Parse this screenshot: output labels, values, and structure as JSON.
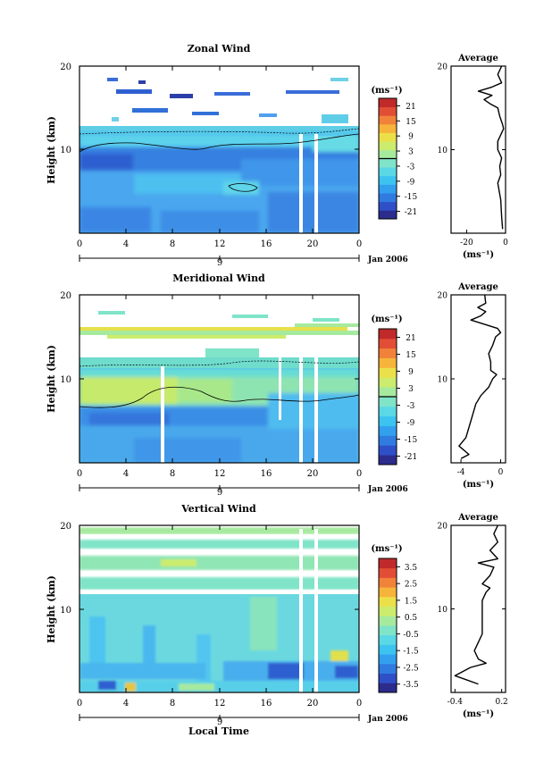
{
  "colormap": [
    "#2c2c8c",
    "#2f4fc8",
    "#2f7be0",
    "#33a0ef",
    "#3cc3f0",
    "#5ad8e6",
    "#7fe4c8",
    "#a6ea9e",
    "#cbec6c",
    "#ece04a",
    "#f6b53a",
    "#f1823a",
    "#e24e35",
    "#c02a2a"
  ],
  "chart_data": [
    {
      "type": "heatmap",
      "title": "Zonal Wind",
      "ylabel": "Height (km)",
      "xlabel": "",
      "x_range": [
        0,
        24
      ],
      "y_range": [
        0,
        20
      ],
      "x_ticks": [
        "0",
        "4",
        "8",
        "12",
        "16",
        "20",
        "0"
      ],
      "y_ticks": [
        "10",
        "20"
      ],
      "date_label": "Jan 2006",
      "date_tick": "9",
      "colorbar": {
        "unit": "(ms⁻¹)",
        "ticks": [
          "21",
          "15",
          "9",
          "3",
          "-3",
          "-9",
          "-15",
          "-21"
        ],
        "range": [
          -24,
          24
        ]
      },
      "profile": {
        "title": "Average",
        "xlabel": "(ms⁻¹)",
        "x_ticks": [
          "-20",
          "0"
        ],
        "x_range": [
          -28,
          0
        ],
        "y_ticks": [
          "10",
          "20"
        ],
        "height": [
          0.5,
          2,
          4,
          6,
          7,
          8,
          9,
          10,
          11,
          12,
          12.5,
          13,
          14,
          15,
          15.5,
          16,
          16.5,
          17,
          17.5,
          18,
          19,
          20
        ],
        "value": [
          -1.5,
          -2,
          -2.5,
          -4,
          -2.5,
          -3,
          -2,
          -4,
          -4,
          -2,
          -1,
          -1.5,
          -3,
          -4,
          -8,
          -11,
          -7,
          -14,
          -7,
          -2,
          -4,
          -2
        ]
      }
    },
    {
      "type": "heatmap",
      "title": "Meridional Wind",
      "ylabel": "Height (km)",
      "xlabel": "",
      "x_range": [
        0,
        24
      ],
      "y_range": [
        0,
        20
      ],
      "x_ticks": [
        "0",
        "4",
        "8",
        "12",
        "16",
        "20",
        "0"
      ],
      "y_ticks": [
        "10",
        "20"
      ],
      "date_label": "Jan 2006",
      "date_tick": "9",
      "colorbar": {
        "unit": "(ms⁻¹)",
        "ticks": [
          "21",
          "15",
          "9",
          "3",
          "-3",
          "-9",
          "-15",
          "-21"
        ],
        "range": [
          -24,
          24
        ]
      },
      "profile": {
        "title": "Average",
        "xlabel": "(ms⁻¹)",
        "x_ticks": [
          "-4",
          "0"
        ],
        "x_range": [
          -5,
          0.5
        ],
        "y_ticks": [
          "10",
          "20"
        ],
        "height": [
          0.5,
          1,
          2,
          3,
          5,
          7,
          8,
          9,
          10,
          10.5,
          11,
          12,
          13,
          14,
          15,
          15.5,
          16,
          17,
          17.5,
          18,
          18.5,
          19,
          20
        ],
        "value": [
          -4,
          -3.2,
          -4.2,
          -3.5,
          -3,
          -2.5,
          -2,
          -1.2,
          -0.8,
          -0.4,
          -1,
          -1,
          -1.2,
          -0.8,
          -0.5,
          0,
          -0.3,
          -3,
          -2,
          -1.5,
          -2.3,
          -1.5,
          -1.6
        ]
      }
    },
    {
      "type": "heatmap",
      "title": "Vertical Wind",
      "ylabel": "Height (km)",
      "xlabel": "Local Time",
      "x_range": [
        0,
        24
      ],
      "y_range": [
        0,
        20
      ],
      "x_ticks": [
        "0",
        "4",
        "8",
        "12",
        "16",
        "20",
        "0"
      ],
      "y_ticks": [
        "10",
        "20"
      ],
      "date_label": "Jan 2006",
      "date_tick": "9",
      "colorbar": {
        "unit": "(ms⁻¹)",
        "ticks": [
          "3.5",
          "2.5",
          "1.5",
          "0.5",
          "-0.5",
          "-1.5",
          "-2.5",
          "-3.5"
        ],
        "range": [
          -4,
          4
        ]
      },
      "profile": {
        "title": "Average",
        "xlabel": "(ms⁻¹)",
        "x_ticks": [
          "-0.4",
          "0.2"
        ],
        "x_range": [
          -0.45,
          0.25
        ],
        "y_ticks": [
          "10",
          "20"
        ],
        "height": [
          1,
          2,
          3,
          3.5,
          4,
          5,
          6,
          7,
          8,
          9,
          10,
          11,
          12,
          12.5,
          13,
          14,
          15,
          15.5,
          16,
          17,
          18,
          19,
          20
        ],
        "value": [
          -0.1,
          -0.4,
          -0.2,
          0,
          -0.1,
          -0.15,
          -0.1,
          -0.05,
          -0.05,
          -0.05,
          -0.05,
          -0.05,
          0,
          0.05,
          -0.05,
          0.05,
          0.1,
          -0.1,
          0.15,
          0.05,
          0.15,
          0.1,
          0.15
        ]
      }
    }
  ]
}
